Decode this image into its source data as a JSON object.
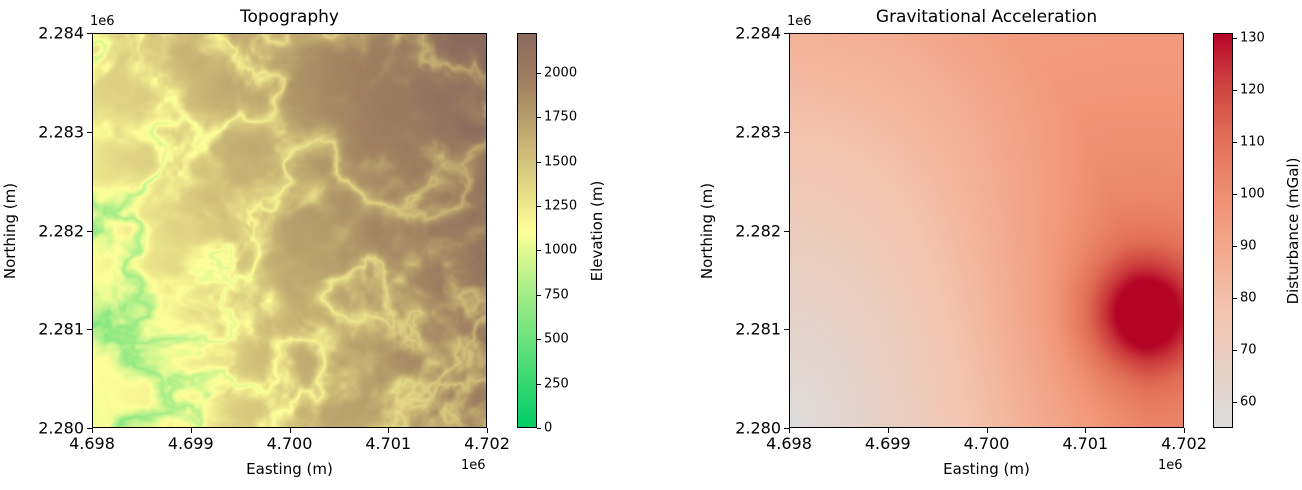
{
  "chart_data": [
    {
      "type": "heatmap",
      "title": "Topography",
      "xlabel": "Easting (m)",
      "ylabel": "Northing (m)",
      "x_offset_label": "1e6",
      "y_offset_label": "1e6",
      "xlim": [
        4.698,
        4.702
      ],
      "ylim": [
        2.28,
        2.284
      ],
      "xticks": [
        "4.698",
        "4.699",
        "4.700",
        "4.701",
        "4.702"
      ],
      "yticks": [
        "2.280",
        "2.281",
        "2.282",
        "2.283",
        "2.284"
      ],
      "colorbar": {
        "label": "Elevation (m)",
        "range": [
          0,
          2225
        ],
        "ticks": [
          "0",
          "250",
          "500",
          "750",
          "1000",
          "1250",
          "1500",
          "1750",
          "2000"
        ],
        "colors": [
          "#00cc66",
          "#ffff99",
          "#8b6a5e"
        ]
      },
      "description_of_field": {
        "low_region": "west (valley network, ~700-1200 m)",
        "high_region": "east / southeast (~2100-2200 m)"
      }
    },
    {
      "type": "heatmap",
      "title": "Gravitational Acceleration",
      "xlabel": "Easting (m)",
      "ylabel": "Northing (m)",
      "x_offset_label": "1e6",
      "y_offset_label": "1e6",
      "xlim": [
        4.698,
        4.702
      ],
      "ylim": [
        2.28,
        2.284
      ],
      "xticks": [
        "4.698",
        "4.699",
        "4.700",
        "4.701",
        "4.702"
      ],
      "yticks": [
        "2.280",
        "2.281",
        "2.282",
        "2.283",
        "2.284"
      ],
      "colorbar": {
        "label": "Disturbance (mGal)",
        "range": [
          55,
          131
        ],
        "ticks": [
          "60",
          "70",
          "80",
          "90",
          "100",
          "110",
          "120",
          "130"
        ],
        "colors": [
          "#dddddd",
          "#f7b89c",
          "#b40426"
        ]
      },
      "peak": {
        "easting": 4.7016,
        "northing": 2.28115,
        "value": 131
      },
      "minimum": {
        "easting": 4.698,
        "northing": 2.28,
        "value": 55
      }
    }
  ]
}
